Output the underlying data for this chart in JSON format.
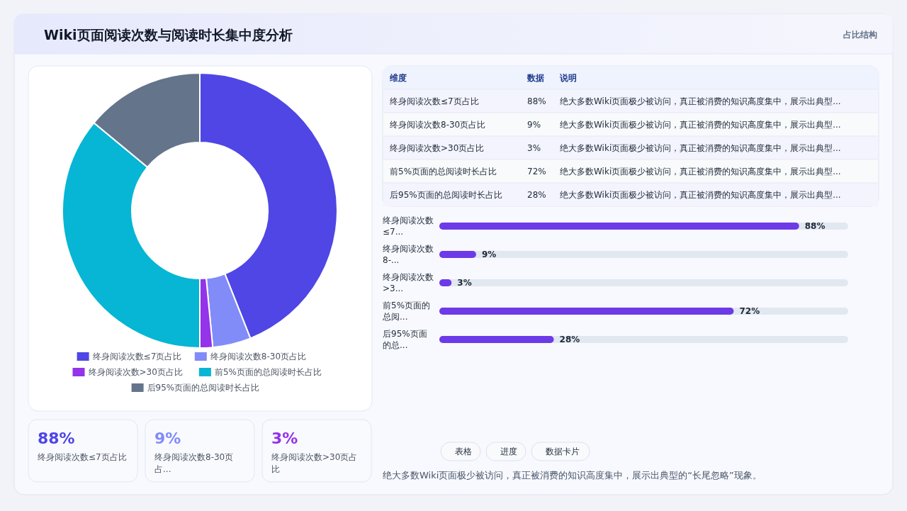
{
  "chart_data": [
    {
      "type": "other",
      "title": "Wiki页面阅读次数与阅读时长集中度分析",
      "subtitle": "占比结构"
    },
    {
      "type": "donut",
      "categories": [
        "终身阅读次数≤7页占比",
        "终身阅读次数8-30页占比",
        "终身阅读次数>30页占比",
        "前5%页面的总阅读时长占比",
        "后95%页面的总阅读时长占比"
      ],
      "values": [
        44,
        4.5,
        1.5,
        36,
        14
      ],
      "colors": [
        "#4f46e5",
        "#818cf8",
        "#9333ea",
        "#06b6d4",
        "#64748b"
      ],
      "legend": "bottom"
    },
    {
      "type": "other",
      "categories": [
        "终身阅读次数≤7页占比",
        "终身阅读次数8-30页占比",
        "终身阅读次数>30页占比",
        "前5%页面的总阅读时长占比",
        "后95%页面的总阅读时长占比"
      ],
      "value_labels": [
        "88%",
        "9%",
        "3%",
        "72%",
        "28%"
      ],
      "annotations": [
        "维度",
        "数据",
        "说明",
        "绝大多数Wiki页面极少被访问，真正被消费的知识高度集中，展示出典型...",
        "绝大多数Wiki页面极少被访问，真正被消费的知识高度集中，展示出典型...",
        "绝大多数Wiki页面极少被访问，真正被消费的知识高度集中，展示出典型...",
        "绝大多数Wiki页面极少被访问，真正被消费的知识高度集中，展示出典型...",
        "绝大多数Wiki页面极少被访问，真正被消费的知识高度集中，展示出典型..."
      ]
    },
    {
      "type": "bar",
      "orientation": "horizontal",
      "categories": [
        "终身阅读次数≤7...",
        "终身阅读次数8-...",
        "终身阅读次数>3...",
        "前5%页面的总阅...",
        "后95%页面的总..."
      ],
      "values": [
        88,
        9,
        3,
        72,
        28
      ],
      "value_labels": [
        "88%",
        "9%",
        "3%",
        "72%",
        "28%"
      ],
      "color": "#6d3ae8",
      "tick_labels": "y"
    },
    {
      "type": "other",
      "categories": [
        "终身阅读次数≤7页占比",
        "终身阅读次数8-30页占...",
        "终身阅读次数>30页占比"
      ],
      "value_labels": [
        "88%",
        "9%",
        "3%"
      ],
      "colors": [
        "#4f46e5",
        "#818cf8",
        "#9333ea"
      ]
    },
    {
      "type": "other",
      "annotations": [
        "表格",
        "进度",
        "数据卡片",
        "绝大多数Wiki页面极少被访问，真正被消费的知识高度集中，展示出典型的“长尾忽略”现象。"
      ]
    }
  ]
}
